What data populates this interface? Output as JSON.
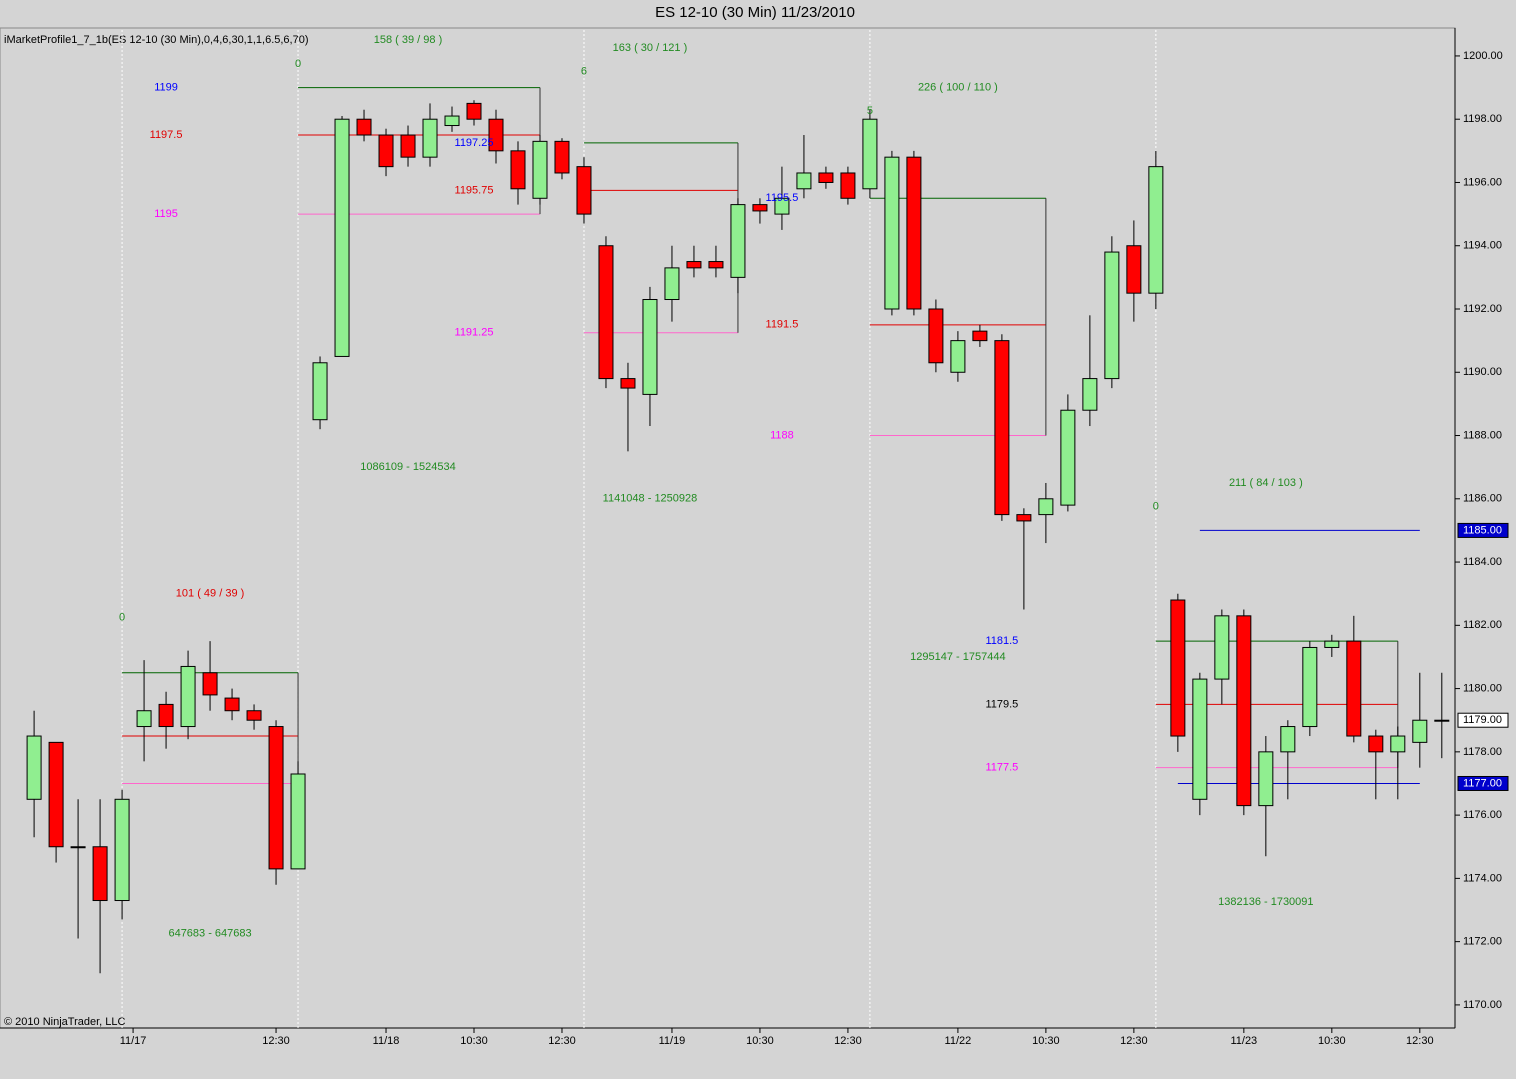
{
  "chart_data": {
    "type": "candlestick",
    "title": "ES 12-10 (30 Min)  11/23/2010",
    "indicator_label": "iMarketProfile1_7_1b(ES 12-10 (30 Min),0,4,6,30,1,1,6.5,6,70)",
    "copyright": "© 2010 NinjaTrader, LLC",
    "up_color": "#90ee90",
    "down_color": "#ff0000",
    "xlim": [
      -1.55,
      64.6
    ],
    "ylim": [
      1169.27,
      1200.82
    ],
    "xticks": [
      {
        "value": 4.5,
        "label": "11/17"
      },
      {
        "value": 11,
        "label": "12:30"
      },
      {
        "value": 16,
        "label": "11/18"
      },
      {
        "value": 20,
        "label": "10:30"
      },
      {
        "value": 24,
        "label": "12:30"
      },
      {
        "value": 29,
        "label": "11/19"
      },
      {
        "value": 33,
        "label": "10:30"
      },
      {
        "value": 37,
        "label": "12:30"
      },
      {
        "value": 42,
        "label": "11/22"
      },
      {
        "value": 46,
        "label": "10:30"
      },
      {
        "value": 50,
        "label": "12:30"
      },
      {
        "value": 55,
        "label": "11/23"
      },
      {
        "value": 59,
        "label": "10:30"
      },
      {
        "value": 63,
        "label": "12:30"
      }
    ],
    "yticks": [
      {
        "value": 1170,
        "label": "1170.00"
      },
      {
        "value": 1172,
        "label": "1172.00"
      },
      {
        "value": 1174,
        "label": "1174.00"
      },
      {
        "value": 1176,
        "label": "1176.00"
      },
      {
        "value": 1178,
        "label": "1178.00"
      },
      {
        "value": 1180,
        "label": "1180.00"
      },
      {
        "value": 1182,
        "label": "1182.00"
      },
      {
        "value": 1184,
        "label": "1184.00"
      },
      {
        "value": 1186,
        "label": "1186.00"
      },
      {
        "value": 1188,
        "label": "1188.00"
      },
      {
        "value": 1190,
        "label": "1190.00"
      },
      {
        "value": 1192,
        "label": "1192.00"
      },
      {
        "value": 1194,
        "label": "1194.00"
      },
      {
        "value": 1196,
        "label": "1196.00"
      },
      {
        "value": 1198,
        "label": "1198.00"
      },
      {
        "value": 1200,
        "label": "1200.00"
      }
    ],
    "price_markers": [
      {
        "value": 1185,
        "label": "1185.00",
        "color": "#0000cc",
        "text_color": "#ffffff"
      },
      {
        "value": 1179,
        "label": "1179.00",
        "color": "#ffffff",
        "text_color": "#000000"
      },
      {
        "value": 1177,
        "label": "1177.00",
        "color": "#0000cc",
        "text_color": "#ffffff"
      }
    ],
    "session_starts": [
      4,
      12,
      25,
      38,
      51
    ],
    "open": [
      1176.5,
      1178.3,
      1175.0,
      1175.0,
      1173.3,
      1178.8,
      1179.5,
      1178.8,
      1180.5,
      1179.7,
      1179.3,
      1178.8,
      1174.3,
      1188.5,
      1190.5,
      1198.0,
      1197.5,
      1197.5,
      1196.8,
      1197.8,
      1198.5,
      1198.0,
      1197.0,
      1195.5,
      1197.3,
      1196.5,
      1194.0,
      1189.8,
      1189.3,
      1192.3,
      1193.5,
      1193.5,
      1193.0,
      1195.3,
      1195.0,
      1195.8,
      1196.3,
      1196.3,
      1195.8,
      1192.0,
      1196.8,
      1192.0,
      1190.0,
      1191.3,
      1191.0,
      1185.5,
      1185.5,
      1185.8,
      1188.8,
      1189.8,
      1194.0,
      1192.5,
      1182.8,
      1176.5,
      1180.3,
      1182.3,
      1176.3,
      1178.0,
      1178.8,
      1181.3,
      1181.5,
      1178.5,
      1178.0,
      1178.3,
      1179.0
    ],
    "high": [
      1179.3,
      1178.3,
      1176.5,
      1176.5,
      1176.8,
      1180.9,
      1179.9,
      1181.2,
      1181.5,
      1180.0,
      1179.5,
      1179.0,
      1177.7,
      1190.5,
      1198.1,
      1198.3,
      1197.7,
      1197.8,
      1198.5,
      1198.4,
      1198.6,
      1198.3,
      1197.3,
      1197.5,
      1197.4,
      1196.8,
      1194.3,
      1190.3,
      1192.7,
      1194.0,
      1194.0,
      1194.0,
      1195.5,
      1195.5,
      1196.5,
      1197.5,
      1196.5,
      1196.5,
      1198.3,
      1197.0,
      1197.0,
      1192.3,
      1191.3,
      1191.5,
      1191.2,
      1185.7,
      1186.5,
      1189.3,
      1191.8,
      1194.3,
      1194.8,
      1197.0,
      1183.0,
      1180.5,
      1182.5,
      1182.5,
      1178.5,
      1179.0,
      1181.5,
      1181.7,
      1182.3,
      1178.7,
      1178.8,
      1180.5,
      1180.5
    ],
    "low": [
      1175.3,
      1174.5,
      1172.1,
      1171.0,
      1172.7,
      1177.7,
      1178.1,
      1178.4,
      1179.3,
      1179.0,
      1178.7,
      1173.8,
      1174.3,
      1188.2,
      1190.5,
      1197.3,
      1196.2,
      1196.5,
      1196.5,
      1197.6,
      1197.8,
      1196.6,
      1195.3,
      1195.3,
      1196.1,
      1194.7,
      1189.5,
      1187.5,
      1188.3,
      1191.6,
      1193.0,
      1193.0,
      1192.5,
      1194.7,
      1194.5,
      1195.5,
      1195.8,
      1195.3,
      1195.5,
      1191.8,
      1191.8,
      1190.0,
      1189.7,
      1190.8,
      1185.3,
      1182.5,
      1184.6,
      1185.6,
      1188.3,
      1189.5,
      1191.6,
      1192.0,
      1178.0,
      1176.0,
      1179.5,
      1176.0,
      1174.7,
      1176.5,
      1178.5,
      1181.0,
      1178.3,
      1176.5,
      1176.5,
      1177.5,
      1177.8
    ],
    "close": [
      1178.5,
      1175.0,
      1175.0,
      1173.3,
      1176.5,
      1179.3,
      1178.8,
      1180.7,
      1179.8,
      1179.3,
      1179.0,
      1174.3,
      1177.3,
      1190.3,
      1198.0,
      1197.5,
      1196.5,
      1196.8,
      1198.0,
      1198.1,
      1198.0,
      1197.0,
      1195.8,
      1197.3,
      1196.3,
      1195.0,
      1189.8,
      1189.5,
      1192.3,
      1193.3,
      1193.3,
      1193.3,
      1195.3,
      1195.1,
      1195.5,
      1196.3,
      1196.0,
      1195.5,
      1198.0,
      1196.8,
      1192.0,
      1190.3,
      1191.0,
      1191.0,
      1185.5,
      1185.3,
      1186.0,
      1188.8,
      1189.8,
      1193.8,
      1192.5,
      1196.5,
      1178.5,
      1180.3,
      1182.3,
      1176.3,
      1178.0,
      1178.8,
      1181.3,
      1181.5,
      1178.5,
      1178.0,
      1178.5,
      1179.0,
      1179.0
    ],
    "profiles": [
      {
        "from": 4,
        "to": 12,
        "vah": 1180.5,
        "poc": 1178.5,
        "val": 1177.0
      },
      {
        "from": 12,
        "to": 23,
        "vah": 1199.0,
        "poc": 1197.5,
        "val": 1195.0
      },
      {
        "from": 25,
        "to": 32,
        "vah": 1197.25,
        "poc": 1195.75,
        "val": 1191.25
      },
      {
        "from": 38,
        "to": 46,
        "vah": 1195.5,
        "poc": 1191.5,
        "val": 1188.0
      },
      {
        "from": 51,
        "to": 62,
        "vah": 1181.5,
        "poc": 1179.5,
        "val": 1177.5
      }
    ],
    "levels": [
      {
        "from": 53,
        "to": 63,
        "value": 1185,
        "color": "#0000cc"
      },
      {
        "from": 52,
        "to": 63,
        "value": 1177,
        "color": "#0000cc"
      }
    ],
    "annotations": [
      {
        "text": "1199",
        "x": 6,
        "y": 1199,
        "color": "#0000ff"
      },
      {
        "text": "1197.5",
        "x": 6,
        "y": 1197.5,
        "color": "#e00000"
      },
      {
        "text": "1195",
        "x": 6,
        "y": 1195,
        "color": "#ff00ff"
      },
      {
        "text": "158 ( 39 / 98 )",
        "x": 17,
        "y": 1200.5,
        "color": "#228b22"
      },
      {
        "text": "0",
        "x": 12,
        "y": 1199.75,
        "color": "#228b22"
      },
      {
        "text": "1197.25",
        "x": 20,
        "y": 1197.25,
        "color": "#0000ff"
      },
      {
        "text": "1195.75",
        "x": 20,
        "y": 1195.75,
        "color": "#e00000"
      },
      {
        "text": "1191.25",
        "x": 20,
        "y": 1191.25,
        "color": "#ff00ff"
      },
      {
        "text": "1086109 - 1524534",
        "x": 17,
        "y": 1187.0,
        "color": "#228b22"
      },
      {
        "text": "163 ( 30 / 121 )",
        "x": 28,
        "y": 1200.25,
        "color": "#228b22"
      },
      {
        "text": "6",
        "x": 25,
        "y": 1199.5,
        "color": "#228b22"
      },
      {
        "text": "1195.5",
        "x": 34,
        "y": 1195.5,
        "color": "#0000ff"
      },
      {
        "text": "1191.5",
        "x": 34,
        "y": 1191.5,
        "color": "#e00000"
      },
      {
        "text": "1188",
        "x": 34,
        "y": 1188,
        "color": "#ff00ff"
      },
      {
        "text": "1141048 - 1250928",
        "x": 28,
        "y": 1186.0,
        "color": "#228b22"
      },
      {
        "text": "226 ( 100 / 110 )",
        "x": 42,
        "y": 1199.0,
        "color": "#228b22"
      },
      {
        "text": "5",
        "x": 38,
        "y": 1198.25,
        "color": "#228b22"
      },
      {
        "text": "1181.5",
        "x": 44,
        "y": 1181.5,
        "color": "#0000ff"
      },
      {
        "text": "1295147 - 1757444",
        "x": 42,
        "y": 1181.0,
        "color": "#228b22"
      },
      {
        "text": "1179.5",
        "x": 44,
        "y": 1179.5,
        "color": "#000000"
      },
      {
        "text": "1177.5",
        "x": 44,
        "y": 1177.5,
        "color": "#ff00ff"
      },
      {
        "text": "211 ( 84 / 103 )",
        "x": 56,
        "y": 1186.5,
        "color": "#228b22"
      },
      {
        "text": "0",
        "x": 51,
        "y": 1185.75,
        "color": "#228b22"
      },
      {
        "text": "1382136 - 1730091",
        "x": 56,
        "y": 1173.25,
        "color": "#228b22"
      },
      {
        "text": "101 ( 49 / 39 )",
        "x": 8,
        "y": 1183.0,
        "color": "#e00000"
      },
      {
        "text": "0",
        "x": 4,
        "y": 1182.25,
        "color": "#228b22"
      },
      {
        "text": "647683 - 647683",
        "x": 8,
        "y": 1172.25,
        "color": "#228b22"
      }
    ]
  }
}
